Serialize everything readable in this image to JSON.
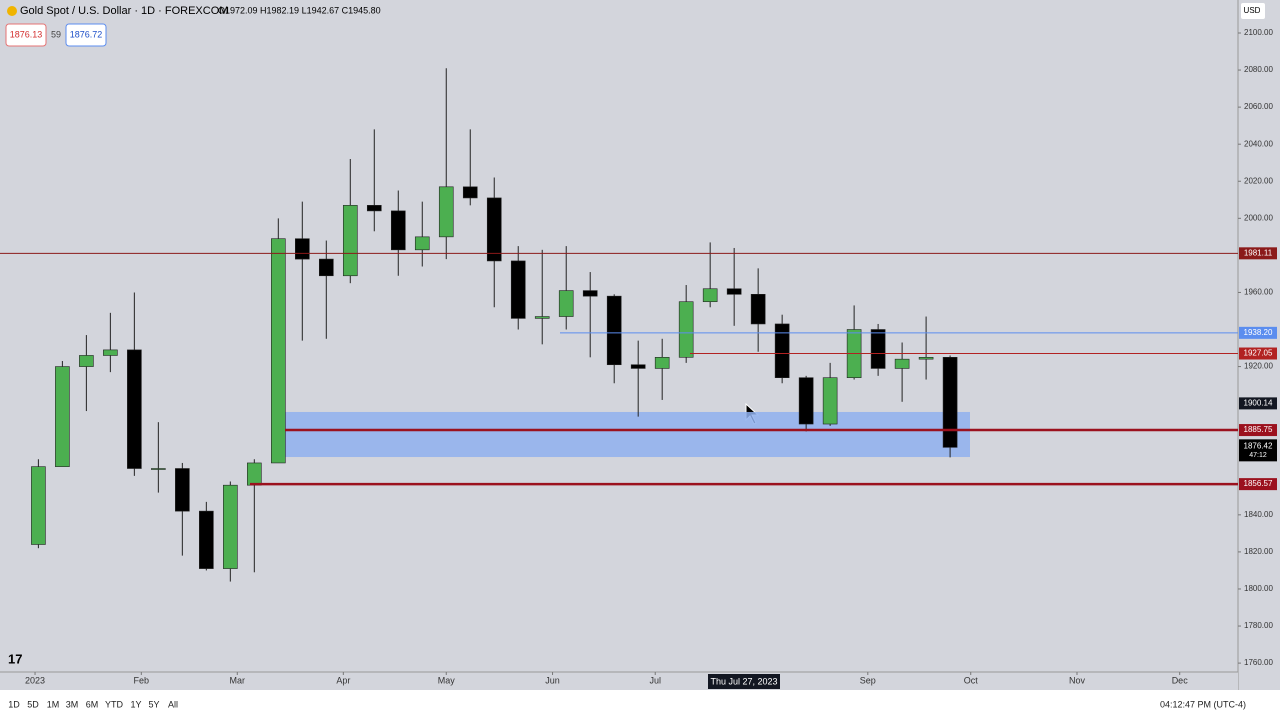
{
  "header": {
    "symbol": "Gold Spot / U.S. Dollar · 1D · FOREXCOM",
    "ohlc": "O1972.09 H1982.19 L1942.67 C1945.80",
    "sell": "1876.13",
    "spread": "59",
    "buy": "1876.72",
    "currency": "USD"
  },
  "chart_data": {
    "type": "candlestick",
    "categories": [
      null,
      null,
      null,
      null,
      null,
      null,
      null,
      null,
      null,
      null,
      null,
      null,
      null,
      null,
      null,
      null,
      null,
      null,
      null,
      null,
      null,
      null,
      null,
      null,
      null,
      null,
      null,
      null,
      null,
      null,
      null,
      null,
      null,
      null,
      null,
      null,
      null,
      null,
      null
    ],
    "open": [
      1824,
      1866,
      1920,
      1926,
      1929,
      1865,
      1865,
      1842,
      1811,
      1856,
      1868,
      1989,
      1978,
      1969,
      2007,
      2004,
      1983,
      1990,
      2017,
      2011,
      1977,
      1946,
      1947,
      1961,
      1958,
      1921,
      1919,
      1925,
      1955,
      1962,
      1959,
      1943,
      1914,
      1889,
      1914,
      1940,
      1919,
      1924,
      1925
    ],
    "high": [
      1870,
      1923,
      1937,
      1949,
      1960,
      1890,
      1868,
      1847,
      1858,
      1870,
      2000,
      2009,
      1988,
      2032,
      2048,
      2015,
      2009,
      2081,
      2048,
      2022,
      1985,
      1983,
      1985,
      1971,
      1959,
      1934,
      1935,
      1964,
      1987,
      1984,
      1973,
      1948,
      1915,
      1922,
      1953,
      1943,
      1933,
      1947,
      1926
    ],
    "low": [
      1822,
      1867,
      1896,
      1917,
      1861,
      1852,
      1818,
      1810,
      1804,
      1809,
      1869,
      1934,
      1935,
      1965,
      1993,
      1969,
      1974,
      1978,
      2007,
      1952,
      1940,
      1932,
      1940,
      1925,
      1911,
      1893,
      1902,
      1922,
      1952,
      1942,
      1928,
      1911,
      1885,
      1888,
      1913,
      1915,
      1901,
      1913,
      1871
    ],
    "close": [
      1866,
      1920,
      1926,
      1929,
      1865,
      1865,
      1842,
      1811,
      1856,
      1868,
      1989,
      1978,
      1969,
      2007,
      2004,
      1983,
      1990,
      2017,
      2011,
      1977,
      1946,
      1947,
      1961,
      1958,
      1921,
      1919,
      1925,
      1955,
      1962,
      1959,
      1943,
      1914,
      1889,
      1914,
      1940,
      1919,
      1924,
      1925,
      1876.42
    ],
    "up_color": "#4caf50",
    "down_color": "#000000",
    "xlim": [
      -1.6,
      50
    ],
    "xticks": [
      {
        "value": -0.14,
        "label": "2023"
      },
      {
        "value": 4.29,
        "label": "Feb"
      },
      {
        "value": 8.29,
        "label": "Mar"
      },
      {
        "value": 12.71,
        "label": "Apr"
      },
      {
        "value": 17,
        "label": "May"
      },
      {
        "value": 21.43,
        "label": "Jun"
      },
      {
        "value": 25.71,
        "label": "Jul"
      },
      {
        "value": 34.57,
        "label": "Sep"
      },
      {
        "value": 38.86,
        "label": "Oct"
      },
      {
        "value": 43.29,
        "label": "Nov"
      },
      {
        "value": 47.57,
        "label": "Dec"
      }
    ],
    "ylim": [
      1755.2,
      2117.8
    ],
    "yticks": [
      {
        "value": 2100,
        "label": "2100.00"
      },
      {
        "value": 2080,
        "label": "2080.00"
      },
      {
        "value": 2060,
        "label": "2060.00"
      },
      {
        "value": 2040,
        "label": "2040.00"
      },
      {
        "value": 2020,
        "label": "2020.00"
      },
      {
        "value": 2000,
        "label": "2000.00"
      },
      {
        "value": 1960,
        "label": "1960.00"
      },
      {
        "value": 1920,
        "label": "1920.00"
      },
      {
        "value": 1840,
        "label": "1840.00"
      },
      {
        "value": 1820,
        "label": "1820.00"
      },
      {
        "value": 1800,
        "label": "1800.00"
      },
      {
        "value": 1780,
        "label": "1780.00"
      },
      {
        "value": 1760,
        "label": "1760.00"
      }
    ],
    "lines": [
      {
        "value": 1981.11,
        "color": "#8b1a1a"
      },
      {
        "value": {
          "value": 1938.2,
          "label": "1938.20"
        },
        "color": "#5b8def"
      },
      {
        "value": 1927.05,
        "color": "#b22222"
      },
      {
        "value": 1885.75,
        "color": "#9b111e"
      },
      {
        "value": 1856.57,
        "color": "#9b111e"
      }
    ],
    "zone": {
      "low": 1871.2,
      "high": 1895.5,
      "color": "#8fb0ee"
    },
    "box_label": 1900.14,
    "countdown": "47:12",
    "crosshair_label": "Thu Jul 27, 2023"
  },
  "toolbar": {
    "ranges": [
      "1D",
      "5D",
      "1M",
      "3M",
      "6M",
      "YTD",
      "1Y",
      "5Y",
      "All"
    ],
    "time": "04:12:47 PM (UTC-4)"
  }
}
